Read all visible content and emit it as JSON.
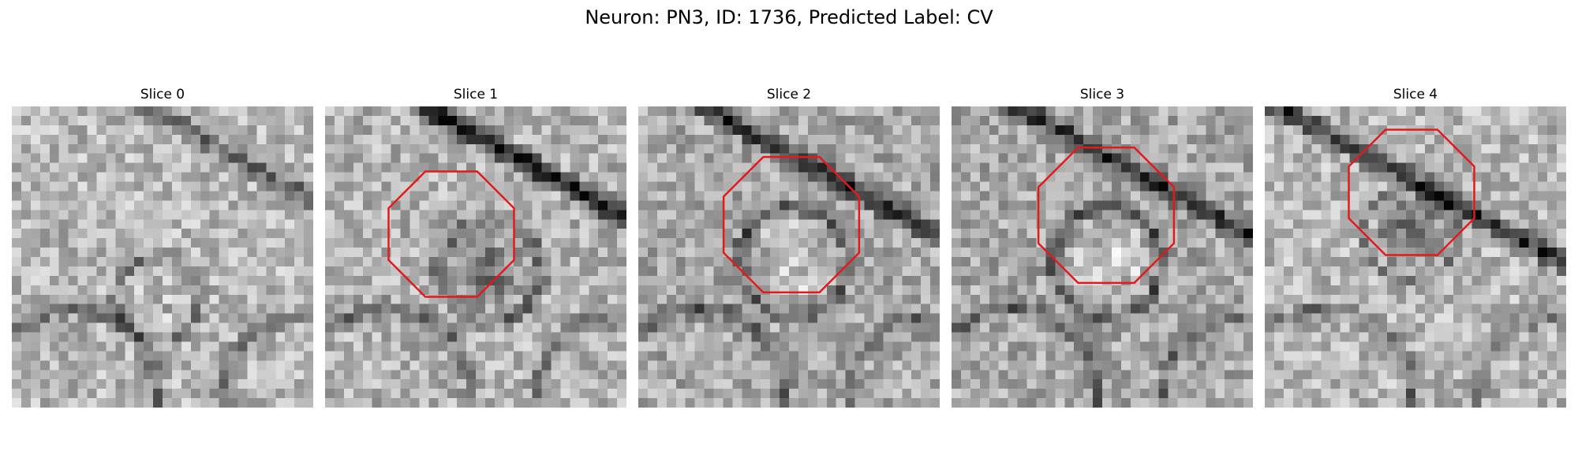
{
  "figure": {
    "title": "Neuron: PN3, ID: 1736, Predicted Label: CV"
  },
  "panels": [
    {
      "title": "Slice 0",
      "outline": false,
      "texture": "membranes-faint"
    },
    {
      "title": "Slice 1",
      "outline": true,
      "texture": "dark-diagonal-band"
    },
    {
      "title": "Slice 2",
      "outline": true,
      "texture": "bright-center"
    },
    {
      "title": "Slice 3",
      "outline": true,
      "texture": "bright-center"
    },
    {
      "title": "Slice 4",
      "outline": true,
      "texture": "dark-center"
    }
  ],
  "colors": {
    "outline": "#e31a1c",
    "colormap": "grayscale"
  }
}
